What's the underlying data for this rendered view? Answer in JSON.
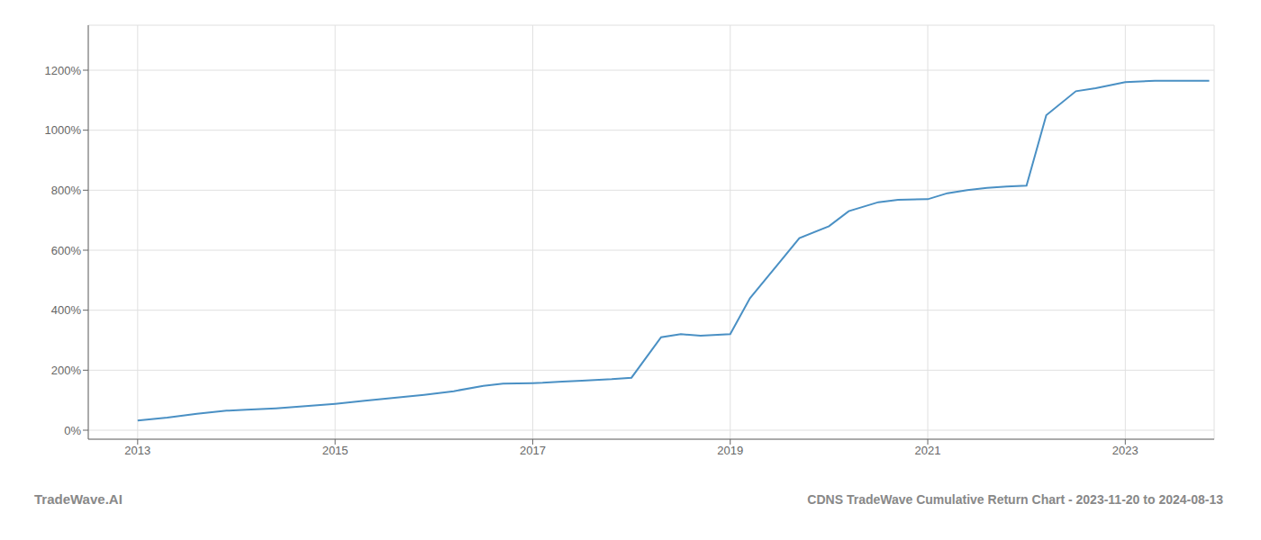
{
  "chart_data": {
    "type": "line",
    "title": "CDNS TradeWave Cumulative Return Chart - 2023-11-20 to 2024-08-13",
    "annotations": [
      "TradeWave.AI"
    ],
    "color": "#4a90c4",
    "grid": true,
    "xlim": [
      2012.5,
      2023.9
    ],
    "xticks": [
      2013,
      2015,
      2017,
      2019,
      2021,
      2023
    ],
    "ylim": [
      -30,
      1350
    ],
    "yticks": [
      {
        "value": 0,
        "label": "0%"
      },
      {
        "value": 200,
        "label": "200%"
      },
      {
        "value": 400,
        "label": "400%"
      },
      {
        "value": 600,
        "label": "600%"
      },
      {
        "value": 800,
        "label": "800%"
      },
      {
        "value": 1000,
        "label": "1000%"
      },
      {
        "value": 1200,
        "label": "1200%"
      }
    ],
    "x": [
      2013.0,
      2013.3,
      2013.6,
      2013.9,
      2014.1,
      2014.4,
      2014.7,
      2015.0,
      2015.3,
      2015.6,
      2015.9,
      2016.2,
      2016.5,
      2016.7,
      2017.0,
      2017.1,
      2017.3,
      2017.5,
      2017.8,
      2018.0,
      2018.3,
      2018.5,
      2018.7,
      2019.0,
      2019.2,
      2019.5,
      2019.7,
      2020.0,
      2020.2,
      2020.5,
      2020.7,
      2021.0,
      2021.2,
      2021.4,
      2021.6,
      2021.8,
      2022.0,
      2022.2,
      2022.5,
      2022.7,
      2023.0,
      2023.3,
      2023.6,
      2023.85
    ],
    "values": [
      32,
      42,
      55,
      65,
      68,
      73,
      80,
      88,
      98,
      108,
      118,
      130,
      148,
      155,
      157,
      158,
      162,
      165,
      170,
      175,
      310,
      320,
      315,
      320,
      440,
      560,
      640,
      680,
      730,
      760,
      768,
      770,
      790,
      800,
      808,
      812,
      815,
      1050,
      1130,
      1140,
      1160,
      1165,
      1165,
      1165
    ]
  }
}
